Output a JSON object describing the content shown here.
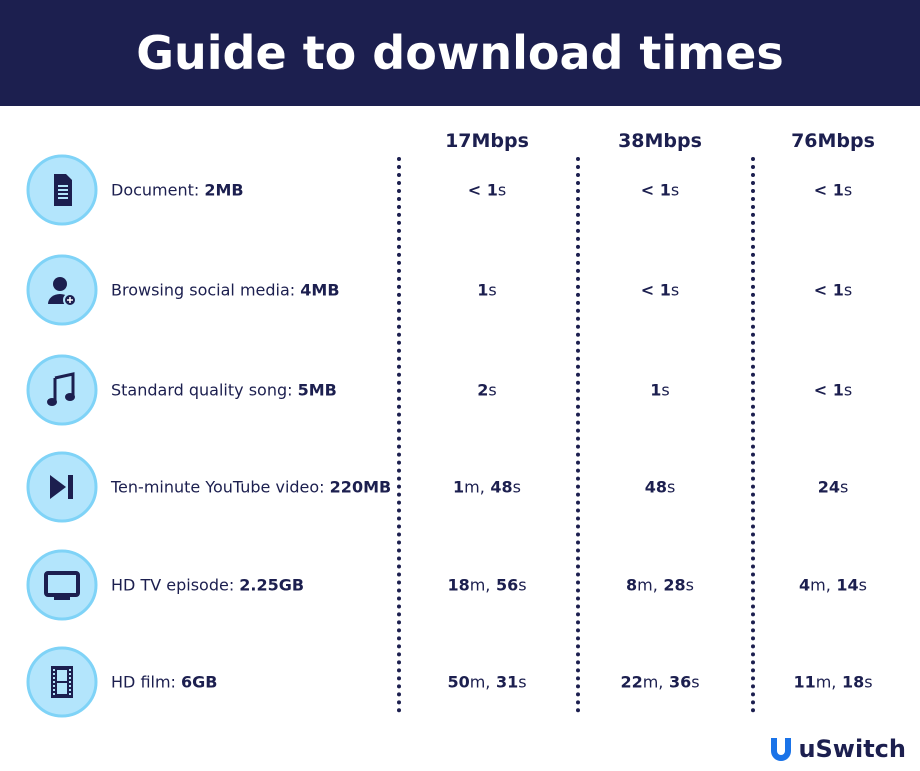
{
  "header": {
    "title": "Guide to download times"
  },
  "table": {
    "columns": [
      "17Mbps",
      "38Mbps",
      "76Mbps"
    ],
    "rows": [
      {
        "label": "Document:",
        "size": "2MB",
        "cells": [
          "< 1s",
          "< 1s",
          "< 1s"
        ]
      },
      {
        "label": "Browsing social media:",
        "size": "4MB",
        "cells": [
          "1s",
          "< 1s",
          "< 1s"
        ]
      },
      {
        "label": "Standard quality song:",
        "size": "5MB",
        "cells": [
          "2s",
          "1s",
          "< 1s"
        ]
      },
      {
        "label": "Ten-minute YouTube video:",
        "size": "220MB",
        "cells": [
          "1m, 48s",
          "48s",
          "24s"
        ]
      },
      {
        "label": "HD TV episode:",
        "size": "2.25GB",
        "cells": [
          "18m, 56s",
          "8m, 28s",
          "4m, 14s"
        ]
      },
      {
        "label": "HD film:",
        "size": "6GB",
        "cells": [
          "50m, 31s",
          "22m, 36s",
          "11m, 18s"
        ]
      }
    ]
  },
  "footer": {
    "logo": "uSwitch"
  }
}
